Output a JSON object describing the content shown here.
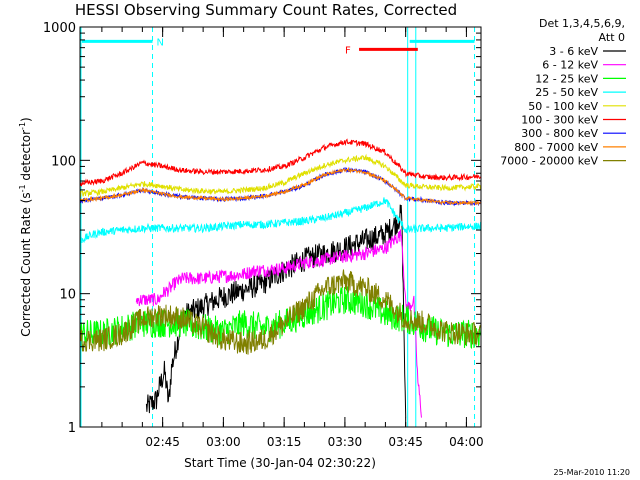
{
  "chart_data": {
    "type": "line",
    "title": "HESSI Observing Summary Count Rates, Corrected",
    "ylabel": "Corrected Count Rate (s",
    "ylabel_sup": "-1",
    "ylabel_mid": " detector",
    "ylabel_sup2": "-1",
    "ylabel_end": ")",
    "xlabel": "Start Time (30-Jan-04 02:30:22)",
    "scale_y": "log",
    "ylim": [
      1,
      1000
    ],
    "xlim_minutes": [
      -5.4,
      93.6
    ],
    "y_ticks": [
      {
        "value": 1,
        "label": "1"
      },
      {
        "value": 10,
        "label": "10"
      },
      {
        "value": 100,
        "label": "100"
      },
      {
        "value": 1000,
        "label": "1000"
      }
    ],
    "x_ticks": [
      {
        "minutes": 15,
        "label": "02:45"
      },
      {
        "minutes": 30,
        "label": "03:00"
      },
      {
        "minutes": 45,
        "label": "03:15"
      },
      {
        "minutes": 60,
        "label": "03:30"
      },
      {
        "minutes": 75,
        "label": "03:45"
      },
      {
        "minutes": 90,
        "label": "04:00"
      }
    ],
    "legend_header": [
      "Det 1,3,4,5,6,9,",
      "Att 0"
    ],
    "legend_placement": "right",
    "series": [
      {
        "name": "3 - 6 keV",
        "color": "#000000",
        "x": [
          11.0,
          13.5,
          14.0,
          15.5,
          16.5,
          17.2,
          20,
          30,
          40,
          45,
          50,
          55,
          60,
          65,
          70,
          73,
          74.0,
          74.6,
          75.0
        ],
        "values": [
          1.4,
          1.6,
          1.9,
          2.6,
          1.5,
          2.8,
          6.8,
          9.5,
          12,
          15,
          18,
          20,
          22,
          25,
          28,
          35,
          40,
          5,
          1.0
        ]
      },
      {
        "name": "6 - 12 keV",
        "color": "#ff00ff",
        "x": [
          8.5,
          12,
          14,
          15,
          17,
          18,
          20,
          25,
          30,
          35,
          38,
          40,
          45,
          50,
          55,
          60,
          65,
          70,
          72,
          74,
          75,
          76,
          77,
          78,
          79
        ],
        "values": [
          9,
          9,
          9,
          10,
          11,
          12,
          13,
          13,
          13.5,
          14,
          15,
          15,
          15.5,
          17,
          18,
          19,
          20,
          22,
          25,
          28,
          8,
          8,
          9,
          2.2,
          1.2
        ]
      },
      {
        "name": "12 - 25 keV",
        "color": "#00ff00",
        "x": [
          -5.4,
          0,
          5,
          10,
          15,
          20,
          25,
          30,
          35,
          40,
          45,
          50,
          55,
          60,
          65,
          70,
          75,
          80,
          85,
          90,
          93.6
        ],
        "values": [
          5,
          5,
          5.5,
          6,
          6,
          6,
          5.5,
          5.2,
          6,
          5.5,
          6,
          7,
          8,
          9,
          8.5,
          7,
          6.5,
          5.5,
          5,
          5,
          5
        ]
      },
      {
        "name": "25 - 50 keV",
        "color": "#00ffff",
        "x": [
          -5.4,
          -2,
          0,
          5,
          10,
          15,
          20,
          25,
          30,
          35,
          40,
          45,
          50,
          55,
          60,
          65,
          70,
          75,
          80,
          85,
          90,
          93.6
        ],
        "values": [
          25,
          28,
          29,
          30,
          31,
          31,
          31,
          31,
          32,
          33,
          33,
          34,
          35,
          37,
          40,
          44,
          50,
          30,
          31,
          31,
          32,
          32
        ]
      },
      {
        "name": "50 - 100 keV",
        "color": "#e0e000",
        "x": [
          -5.4,
          0,
          5,
          10,
          15,
          20,
          25,
          30,
          35,
          40,
          45,
          50,
          55,
          60,
          65,
          70,
          75,
          80,
          85,
          90,
          93.6
        ],
        "values": [
          56,
          58,
          62,
          67,
          64,
          60,
          59,
          58,
          60,
          62,
          68,
          80,
          92,
          100,
          105,
          90,
          65,
          63,
          62,
          63,
          64
        ]
      },
      {
        "name": "100 - 300 keV",
        "color": "#ff0000",
        "x": [
          -5.4,
          0,
          5,
          10,
          15,
          20,
          25,
          30,
          35,
          40,
          45,
          50,
          55,
          60,
          65,
          70,
          75,
          80,
          85,
          90,
          93.6
        ],
        "values": [
          67,
          70,
          80,
          96,
          90,
          84,
          82,
          82,
          83,
          85,
          90,
          105,
          125,
          138,
          133,
          115,
          80,
          75,
          74,
          75,
          76
        ]
      },
      {
        "name": "300 - 800 keV",
        "color": "#0000ff",
        "x": [
          -5.4,
          0,
          5,
          10,
          15,
          20,
          25,
          30,
          35,
          40,
          45,
          50,
          55,
          60,
          65,
          70,
          75,
          80,
          85,
          90,
          93.6
        ],
        "values": [
          50,
          52,
          55,
          60,
          56,
          53,
          52,
          51,
          52,
          54,
          58,
          65,
          78,
          85,
          82,
          70,
          52,
          50,
          48,
          48,
          48
        ]
      },
      {
        "name": "800 - 7000 keV",
        "color": "#ff8000",
        "x": [
          -5.4,
          0,
          5,
          10,
          15,
          20,
          25,
          30,
          35,
          40,
          45,
          50,
          55,
          60,
          65,
          70,
          75,
          80,
          85,
          90,
          93.6
        ],
        "values": [
          50,
          52,
          55,
          60,
          56,
          53,
          52,
          51,
          52,
          54,
          58,
          66,
          78,
          85,
          82,
          70,
          52,
          50,
          48,
          48,
          48
        ]
      },
      {
        "name": "7000 - 20000 keV",
        "color": "#808000",
        "x": [
          -5.4,
          0,
          5,
          10,
          15,
          20,
          25,
          30,
          35,
          40,
          45,
          50,
          55,
          60,
          65,
          70,
          75,
          80,
          85,
          90,
          93.6
        ],
        "values": [
          4.5,
          4.5,
          5,
          6.5,
          7,
          6.5,
          5.5,
          4.5,
          4.2,
          4.5,
          6,
          8,
          11,
          12.5,
          11,
          9,
          6.5,
          6,
          5.2,
          5,
          5
        ]
      }
    ],
    "annotations": [
      {
        "label": "N",
        "color": "#00ffff",
        "kind": "bar",
        "y": 780,
        "ranges": [
          [
            -5.4,
            12.5
          ],
          [
            75.5,
            92
          ]
        ]
      },
      {
        "label": "F",
        "color": "#ff0000",
        "kind": "bar",
        "y": 680,
        "ranges": [
          [
            63.0,
            78.0
          ]
        ]
      }
    ],
    "vertical_markers": [
      {
        "minutes": -5.4,
        "style": "solid",
        "color": "#00ffff"
      },
      {
        "minutes": 12.5,
        "style": "dashed",
        "color": "#00ffff"
      },
      {
        "minutes": 75.5,
        "style": "solid",
        "color": "#00ffff"
      },
      {
        "minutes": 77.5,
        "style": "solid",
        "color": "#00ffff"
      },
      {
        "minutes": 92.0,
        "style": "dashed",
        "color": "#00ffff"
      }
    ],
    "grid": false
  },
  "footer": {
    "timestamp": "25-Mar-2010 11:20"
  }
}
